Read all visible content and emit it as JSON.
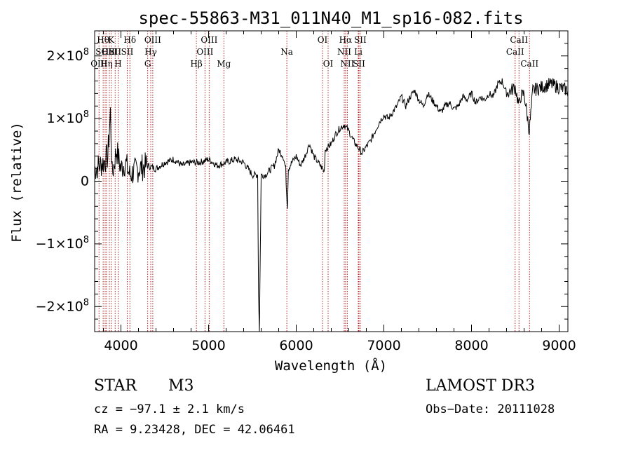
{
  "chart_data": {
    "type": "line",
    "title": "spec-55863-M31_011N40_M1_sp16-082.fits",
    "xlabel": "Wavelength (Å)",
    "ylabel": "Flux (relative)",
    "xlim": [
      3700,
      9100
    ],
    "ylim": [
      -240000000.0,
      240000000.0
    ],
    "x_ticks": [
      {
        "value": 4000,
        "label": "4000"
      },
      {
        "value": 5000,
        "label": "5000"
      },
      {
        "value": 6000,
        "label": "6000"
      },
      {
        "value": 7000,
        "label": "7000"
      },
      {
        "value": 8000,
        "label": "8000"
      },
      {
        "value": 9000,
        "label": "9000"
      }
    ],
    "y_ticks": [
      {
        "value": -200000000.0,
        "base": "−2×10",
        "exp": "8"
      },
      {
        "value": -100000000.0,
        "base": "−1×10",
        "exp": "8"
      },
      {
        "value": 0,
        "base": "0",
        "exp": ""
      },
      {
        "value": 100000000.0,
        "base": "1×10",
        "exp": "8"
      },
      {
        "value": 200000000.0,
        "base": "2×10",
        "exp": "8"
      }
    ],
    "spectrum": {
      "x": [
        3700,
        3800,
        3850,
        3880,
        3900,
        3950,
        4000,
        4050,
        4100,
        4200,
        4300,
        4400,
        4500,
        4600,
        4700,
        4800,
        4900,
        5000,
        5100,
        5200,
        5300,
        5400,
        5500,
        5560,
        5570,
        5580,
        5600,
        5650,
        5700,
        5750,
        5800,
        5850,
        5880,
        5890,
        5900,
        5910,
        5950,
        6000,
        6050,
        6100,
        6150,
        6200,
        6250,
        6300,
        6320,
        6330,
        6400,
        6450,
        6500,
        6550,
        6600,
        6650,
        6700,
        6750,
        6800,
        6850,
        6900,
        6950,
        7000,
        7050,
        7100,
        7150,
        7200,
        7250,
        7300,
        7350,
        7400,
        7450,
        7500,
        7550,
        7600,
        7650,
        7700,
        7750,
        7800,
        7850,
        7900,
        7950,
        8000,
        8050,
        8100,
        8150,
        8200,
        8250,
        8300,
        8350,
        8400,
        8450,
        8500,
        8540,
        8560,
        8600,
        8660,
        8700,
        8800,
        8900,
        9000,
        9100
      ],
      "y": [
        20000000.0,
        30000000.0,
        40000000.0,
        110000000.0,
        10000000.0,
        50000000.0,
        20000000.0,
        30000000.0,
        10000000.0,
        20000000.0,
        25000000.0,
        20000000.0,
        30000000.0,
        35000000.0,
        25000000.0,
        30000000.0,
        30000000.0,
        35000000.0,
        25000000.0,
        30000000.0,
        35000000.0,
        30000000.0,
        10000000.0,
        10000000.0,
        -180000000.0,
        -240000000.0,
        10000000.0,
        10000000.0,
        18000000.0,
        25000000.0,
        50000000.0,
        40000000.0,
        20000000.0,
        -20000000.0,
        -40000000.0,
        20000000.0,
        30000000.0,
        40000000.0,
        25000000.0,
        40000000.0,
        60000000.0,
        40000000.0,
        30000000.0,
        20000000.0,
        15000000.0,
        50000000.0,
        60000000.0,
        75000000.0,
        85000000.0,
        90000000.0,
        80000000.0,
        65000000.0,
        55000000.0,
        45000000.0,
        55000000.0,
        65000000.0,
        80000000.0,
        95000000.0,
        105000000.0,
        100000000.0,
        110000000.0,
        120000000.0,
        135000000.0,
        120000000.0,
        135000000.0,
        145000000.0,
        130000000.0,
        120000000.0,
        140000000.0,
        130000000.0,
        120000000.0,
        110000000.0,
        120000000.0,
        125000000.0,
        115000000.0,
        120000000.0,
        135000000.0,
        130000000.0,
        140000000.0,
        125000000.0,
        135000000.0,
        130000000.0,
        140000000.0,
        135000000.0,
        155000000.0,
        160000000.0,
        140000000.0,
        145000000.0,
        150000000.0,
        120000000.0,
        135000000.0,
        140000000.0,
        80000000.0,
        145000000.0,
        150000000.0,
        155000000.0,
        150000000.0,
        145000000.0
      ]
    },
    "lines": [
      {
        "x": 3750,
        "row": 2,
        "label": "OIII"
      },
      {
        "x": 3797,
        "row": 0,
        "label": "Hθ"
      },
      {
        "x": 3820,
        "row": 1,
        "label": "SOII"
      },
      {
        "x": 3835,
        "row": 2,
        "label": "Hη"
      },
      {
        "x": 3868,
        "row": 1,
        "label": "HeI"
      },
      {
        "x": 3889,
        "row": 0,
        "label": "K"
      },
      {
        "x": 3934,
        "row": 1,
        "label": "SII"
      },
      {
        "x": 3968,
        "row": 2,
        "label": "H"
      },
      {
        "x": 4102,
        "row": 0,
        "label": "Hδ"
      },
      {
        "x": 4072,
        "row": 1,
        "label": "SII"
      },
      {
        "x": 4305,
        "row": 2,
        "label": "G"
      },
      {
        "x": 4340,
        "row": 1,
        "label": "Hγ"
      },
      {
        "x": 4363,
        "row": 0,
        "label": "OIII"
      },
      {
        "x": 4861,
        "row": 2,
        "label": "Hβ"
      },
      {
        "x": 4959,
        "row": 1,
        "label": "OIII"
      },
      {
        "x": 5007,
        "row": 0,
        "label": "OIII"
      },
      {
        "x": 5175,
        "row": 2,
        "label": "Mg"
      },
      {
        "x": 5893,
        "row": 1,
        "label": "Na"
      },
      {
        "x": 6300,
        "row": 0,
        "label": "OI"
      },
      {
        "x": 6364,
        "row": 2,
        "label": "OI"
      },
      {
        "x": 6548,
        "row": 1,
        "label": "NII"
      },
      {
        "x": 6563,
        "row": 0,
        "label": "Hα"
      },
      {
        "x": 6583,
        "row": 2,
        "label": "NII"
      },
      {
        "x": 6708,
        "row": 1,
        "label": "Li"
      },
      {
        "x": 6716,
        "row": 2,
        "label": "SII"
      },
      {
        "x": 6731,
        "row": 0,
        "label": "SII"
      },
      {
        "x": 8498,
        "row": 1,
        "label": "CaII"
      },
      {
        "x": 8542,
        "row": 0,
        "label": "CaII"
      },
      {
        "x": 8662,
        "row": 2,
        "label": "CaII"
      }
    ]
  },
  "info": {
    "class": "STAR",
    "subclass": "M3",
    "survey": "LAMOST DR3",
    "cz": "cz = −97.1 ± 2.1 km/s",
    "obs_date": "Obs−Date: 20111028",
    "radec": "RA =   9.23428, DEC =  42.06461"
  }
}
